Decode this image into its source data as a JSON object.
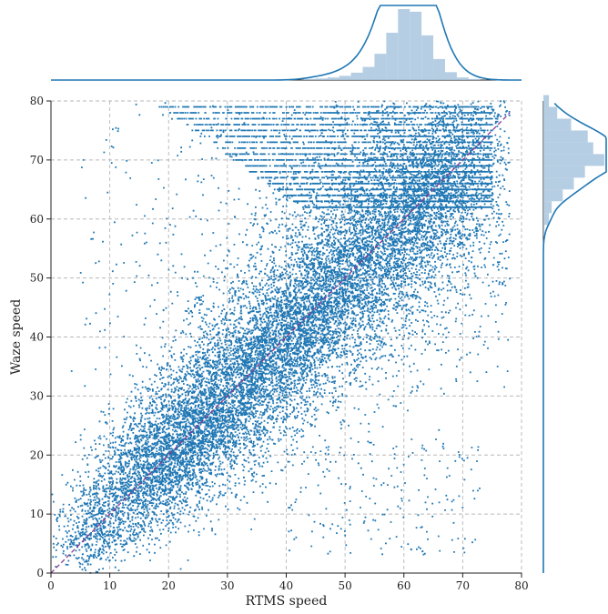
{
  "chart_data": {
    "type": "scatter",
    "title": "",
    "xlabel": "RTMS speed",
    "ylabel": "Waze speed",
    "xlim": [
      0,
      80
    ],
    "ylim": [
      0,
      80
    ],
    "xticks": [
      0,
      10,
      20,
      30,
      40,
      50,
      60,
      70,
      80
    ],
    "yticks": [
      0,
      10,
      20,
      30,
      40,
      50,
      60,
      70,
      80
    ],
    "grid": true,
    "reference_line": {
      "from": [
        0,
        0
      ],
      "to": [
        78,
        78
      ],
      "style": "dashed",
      "color": "#8b3a8f"
    },
    "point_color": "#1f77b4",
    "marginal_color": "#1f77b4",
    "marginal_fill": "#a9c6de",
    "marginal_x": {
      "bins": [
        44,
        46,
        48,
        50,
        52,
        54,
        56,
        58,
        60,
        62,
        64,
        66,
        68,
        70,
        72
      ],
      "density": [
        0.004,
        0.006,
        0.01,
        0.016,
        0.028,
        0.05,
        0.1,
        0.18,
        0.27,
        0.26,
        0.17,
        0.08,
        0.03,
        0.01,
        0.004
      ]
    },
    "marginal_y": {
      "bins": [
        58,
        60,
        62,
        64,
        66,
        68,
        70,
        72,
        74,
        76,
        78,
        80
      ],
      "density": [
        0.004,
        0.02,
        0.03,
        0.07,
        0.11,
        0.15,
        0.22,
        0.18,
        0.16,
        0.1,
        0.05,
        0.02
      ]
    }
  }
}
